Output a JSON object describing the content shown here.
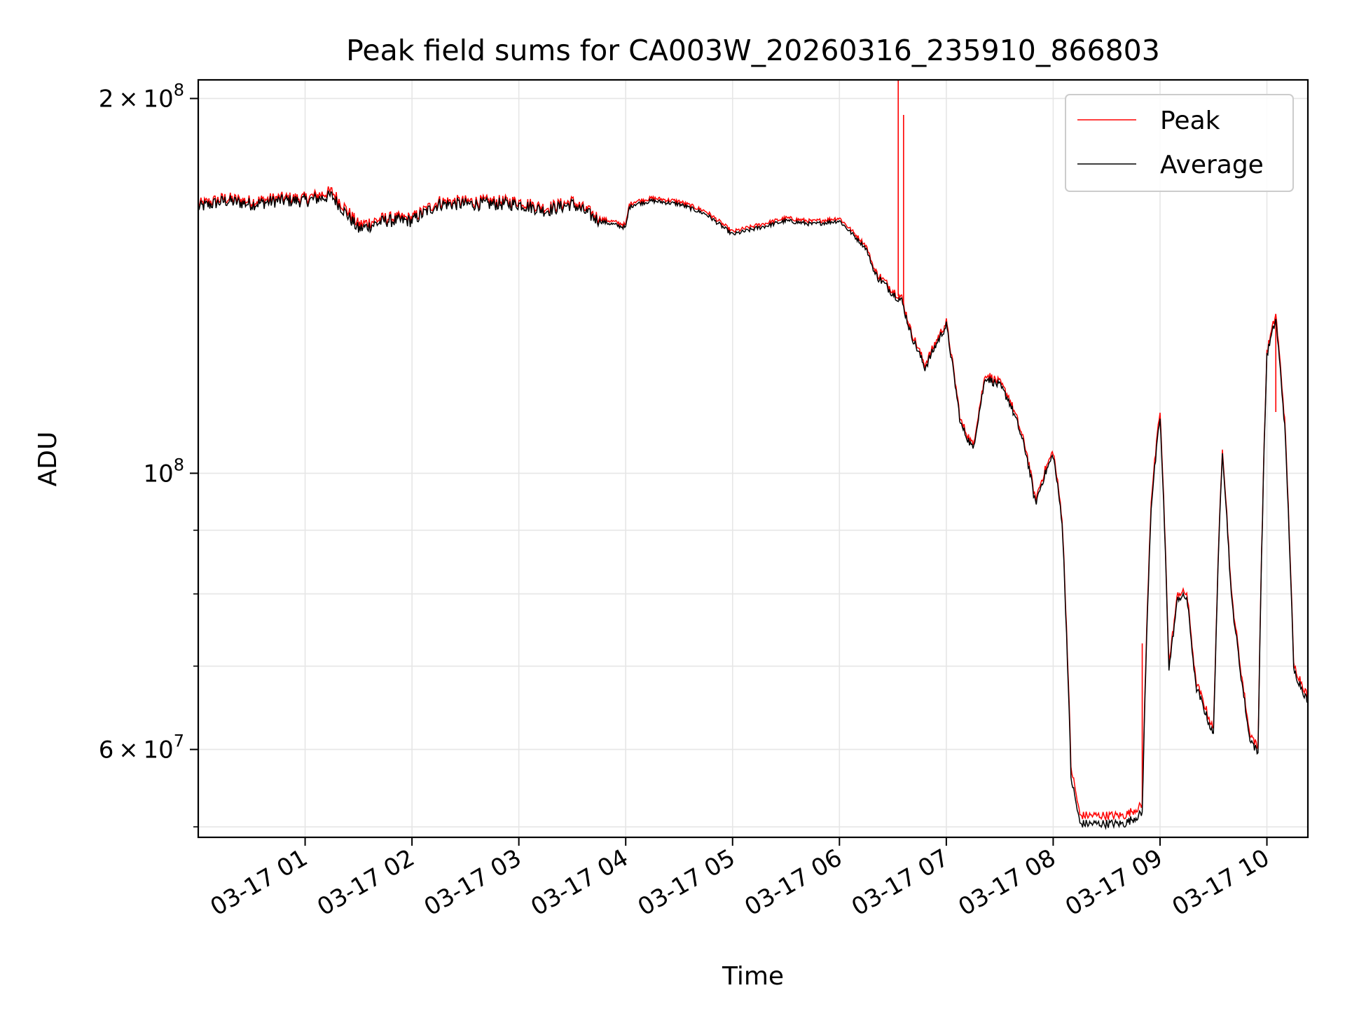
{
  "chart_data": {
    "type": "line",
    "title": "Peak field sums for CA003W_20260316_235910_866803",
    "xlabel": "Time",
    "ylabel": "ADU",
    "y_scale": "log",
    "ylim": [
      51000000,
      207000000
    ],
    "xlim": [
      "2026-03-17 00:00",
      "2026-03-17 10:23"
    ],
    "grid": true,
    "legend": "top-right",
    "x_ticks": [
      "03-17 01",
      "03-17 02",
      "03-17 03",
      "03-17 04",
      "03-17 05",
      "03-17 06",
      "03-17 07",
      "03-17 08",
      "03-17 09",
      "03-17 10"
    ],
    "y_ticks": [
      {
        "value": 60000000,
        "mantissa": "6",
        "exp": "7"
      },
      {
        "value": 100000000,
        "mantissa": "",
        "exp": "8"
      },
      {
        "value": 200000000,
        "mantissa": "2",
        "exp": "8"
      }
    ],
    "y_minor_ticks": [
      52000000,
      70000000,
      80000000,
      90000000
    ],
    "x": [
      "00:00",
      "00:15",
      "00:30",
      "00:45",
      "01:00",
      "01:15",
      "01:30",
      "01:45",
      "02:00",
      "02:15",
      "02:30",
      "02:45",
      "03:00",
      "03:15",
      "03:30",
      "03:45",
      "04:00",
      "04:02",
      "04:05",
      "04:15",
      "04:30",
      "04:45",
      "05:00",
      "05:15",
      "05:30",
      "05:45",
      "06:00",
      "06:15",
      "06:20",
      "06:30",
      "06:35",
      "06:40",
      "06:48",
      "06:55",
      "07:00",
      "07:08",
      "07:15",
      "07:22",
      "07:30",
      "07:35",
      "07:40",
      "07:45",
      "07:50",
      "07:55",
      "08:00",
      "08:05",
      "08:10",
      "08:15",
      "08:20",
      "08:30",
      "08:40",
      "08:50",
      "08:55",
      "09:00",
      "09:05",
      "09:10",
      "09:15",
      "09:20",
      "09:25",
      "09:30",
      "09:35",
      "09:40",
      "09:45",
      "09:50",
      "09:55",
      "10:00",
      "10:05",
      "10:10",
      "10:15",
      "10:23"
    ],
    "series": [
      {
        "name": "Peak",
        "color": "#ff0000",
        "values": [
          164,
          166,
          165,
          166,
          166,
          168,
          158,
          160,
          160,
          165,
          165,
          165,
          165,
          163,
          165,
          160,
          158,
          164,
          165,
          166,
          165,
          162,
          156,
          158,
          160,
          159,
          160,
          152,
          145,
          140,
          138,
          130,
          122,
          128,
          132,
          110,
          105,
          120,
          118,
          115,
          110,
          104,
          95,
          100,
          104,
          92,
          58,
          53,
          53,
          53,
          53,
          54,
          95,
          112,
          70,
          80,
          80,
          68,
          65,
          62,
          105,
          80,
          70,
          62,
          60,
          125,
          134,
          110,
          70,
          66
        ],
        "spikes": [
          {
            "x": "06:33",
            "value": 207000000
          },
          {
            "x": "06:36",
            "value": 194000000
          },
          {
            "x": "08:50",
            "value": 73000000
          },
          {
            "x": "10:05",
            "value": 112000000
          }
        ]
      },
      {
        "name": "Average",
        "color": "#000000",
        "values": [
          163.5,
          165.5,
          164.5,
          165.5,
          165.5,
          167,
          157,
          159.5,
          159.5,
          164.5,
          164.5,
          164.5,
          164.5,
          162.5,
          164.5,
          159.5,
          157.5,
          163.5,
          164.5,
          165.5,
          164.5,
          161.5,
          155.5,
          157.5,
          159.5,
          158.5,
          159.5,
          151.5,
          144.5,
          139.5,
          137.5,
          129.5,
          121.5,
          127.5,
          131.5,
          109.5,
          104.5,
          119.5,
          117.5,
          114.5,
          109.5,
          103.5,
          94.5,
          99.5,
          103.5,
          91.5,
          57,
          52.3,
          52.3,
          52.3,
          52.3,
          53.3,
          94,
          111,
          69.5,
          79.5,
          79.5,
          67.5,
          64.5,
          61.5,
          104.5,
          79.5,
          69.5,
          61.5,
          59.5,
          124.5,
          133,
          109,
          69.5,
          65.5
        ]
      }
    ],
    "value_unit_multiplier": 1000000
  }
}
